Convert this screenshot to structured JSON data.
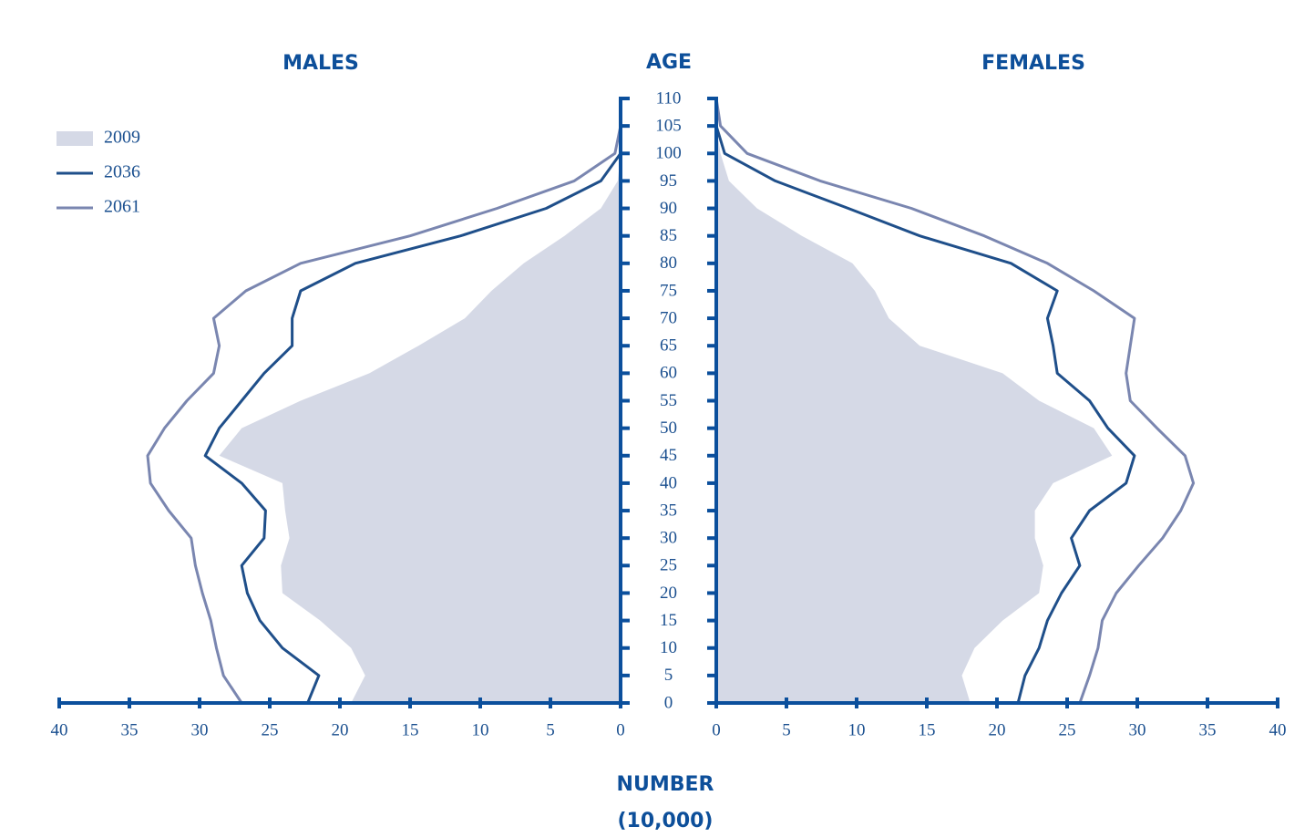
{
  "chart_data": {
    "type": "pyramid",
    "left_label": "MALES",
    "right_label": "FEMALES",
    "y_label": "AGE",
    "x_label": [
      "NUMBER",
      "(10,000)"
    ],
    "ages": [
      0,
      5,
      10,
      15,
      20,
      25,
      30,
      35,
      40,
      45,
      50,
      55,
      60,
      65,
      70,
      75,
      80,
      85,
      90,
      95,
      100,
      105,
      110
    ],
    "ylim": [
      0,
      110
    ],
    "yticks": [
      0,
      5,
      10,
      15,
      20,
      25,
      30,
      35,
      40,
      45,
      50,
      55,
      60,
      65,
      70,
      75,
      80,
      85,
      90,
      95,
      100,
      105,
      110
    ],
    "xlim": [
      0,
      40
    ],
    "xticks": [
      0,
      5,
      10,
      15,
      20,
      25,
      30,
      35,
      40
    ],
    "series": [
      {
        "name": "2009",
        "color": "#d5d9e6",
        "kind": "area",
        "males": [
          19.2,
          18.2,
          19.2,
          21.4,
          24.1,
          24.2,
          23.6,
          23.9,
          24.1,
          28.6,
          27.0,
          22.8,
          17.9,
          14.4,
          11.1,
          9.2,
          6.9,
          4.0,
          1.4,
          0.2,
          0,
          0,
          0
        ],
        "females": [
          18.1,
          17.5,
          18.4,
          20.4,
          23.0,
          23.3,
          22.7,
          22.7,
          24.0,
          28.2,
          26.9,
          23.0,
          20.4,
          14.5,
          12.3,
          11.3,
          9.7,
          6.1,
          2.9,
          0.9,
          0.3,
          0,
          0
        ]
      },
      {
        "name": "2036",
        "color": "#1f4f8a",
        "kind": "line",
        "males": [
          22.3,
          21.5,
          24.1,
          25.7,
          26.6,
          27.0,
          25.4,
          25.3,
          27.0,
          29.6,
          28.6,
          27.0,
          25.4,
          23.4,
          23.4,
          22.8,
          18.9,
          11.4,
          5.3,
          1.4,
          0,
          0,
          0
        ],
        "females": [
          21.5,
          22.0,
          23.0,
          23.6,
          24.6,
          25.9,
          25.3,
          26.6,
          29.2,
          29.8,
          27.9,
          26.6,
          24.3,
          24.0,
          23.6,
          24.3,
          21.0,
          14.5,
          9.4,
          4.2,
          0.6,
          0,
          0
        ]
      },
      {
        "name": "2061",
        "color": "#7a86b0",
        "kind": "line",
        "males": [
          27.0,
          28.3,
          28.8,
          29.2,
          29.8,
          30.3,
          30.6,
          32.2,
          33.5,
          33.7,
          32.5,
          30.9,
          29.0,
          28.6,
          29.0,
          26.7,
          22.8,
          15.0,
          8.8,
          3.3,
          0.4,
          0,
          0
        ],
        "females": [
          25.9,
          26.6,
          27.2,
          27.5,
          28.5,
          30.1,
          31.8,
          33.1,
          34.0,
          33.4,
          31.4,
          29.5,
          29.2,
          29.5,
          29.8,
          26.9,
          23.6,
          19.1,
          13.9,
          7.4,
          2.2,
          0.3,
          0
        ]
      }
    ]
  }
}
